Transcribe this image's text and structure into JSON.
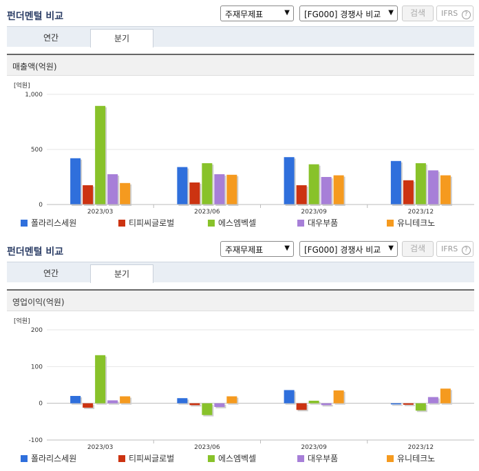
{
  "title": "펀더멘털 비교",
  "select1": "주재무제표",
  "select2": "[FG000] 경쟁사 비교",
  "search_label": "검색",
  "ifrs_label": "IFRS",
  "ifrs_help": "?",
  "tabs": [
    "연간",
    "분기"
  ],
  "active_tab": "분기",
  "companies": [
    {
      "name": "폴라리스세원",
      "color": "#2f6fdc"
    },
    {
      "name": "티피씨글로벌",
      "color": "#cc3311"
    },
    {
      "name": "에스엠벡셀",
      "color": "#88c22a"
    },
    {
      "name": "대우부품",
      "color": "#a77fd8"
    },
    {
      "name": "유니테크노",
      "color": "#f59a1f"
    }
  ],
  "chart_data": [
    {
      "type": "bar",
      "title": "매출액(억원)",
      "unit": "[억원]",
      "categories": [
        "2023/03",
        "2023/06",
        "2023/09",
        "2023/12"
      ],
      "ylim": [
        0,
        1000
      ],
      "yticks": [
        0,
        500,
        1000
      ],
      "ytick_labels": [
        "0",
        "500",
        "1,000"
      ],
      "series": [
        {
          "name": "폴라리스세원",
          "values": [
            420,
            340,
            430,
            395
          ]
        },
        {
          "name": "티피씨글로벌",
          "values": [
            175,
            200,
            175,
            220
          ]
        },
        {
          "name": "에스엠벡셀",
          "values": [
            895,
            375,
            365,
            375
          ]
        },
        {
          "name": "대우부품",
          "values": [
            275,
            275,
            250,
            310
          ]
        },
        {
          "name": "유니테크노",
          "values": [
            195,
            270,
            265,
            265
          ]
        }
      ]
    },
    {
      "type": "bar",
      "title": "영업이익(억원)",
      "unit": "[억원]",
      "categories": [
        "2023/03",
        "2023/06",
        "2023/09",
        "2023/12"
      ],
      "ylim": [
        -100,
        200
      ],
      "yticks": [
        -100,
        0,
        100,
        200
      ],
      "ytick_labels": [
        "-100",
        "0",
        "100",
        "200"
      ],
      "series": [
        {
          "name": "폴라리스세원",
          "values": [
            20,
            14,
            36,
            -3
          ]
        },
        {
          "name": "티피씨글로벌",
          "values": [
            -12,
            -5,
            -18,
            -4
          ]
        },
        {
          "name": "에스엠벡셀",
          "values": [
            131,
            -32,
            7,
            -20
          ]
        },
        {
          "name": "대우부품",
          "values": [
            8,
            -10,
            -5,
            17
          ]
        },
        {
          "name": "유니테크노",
          "values": [
            19,
            19,
            35,
            40
          ]
        }
      ]
    }
  ]
}
